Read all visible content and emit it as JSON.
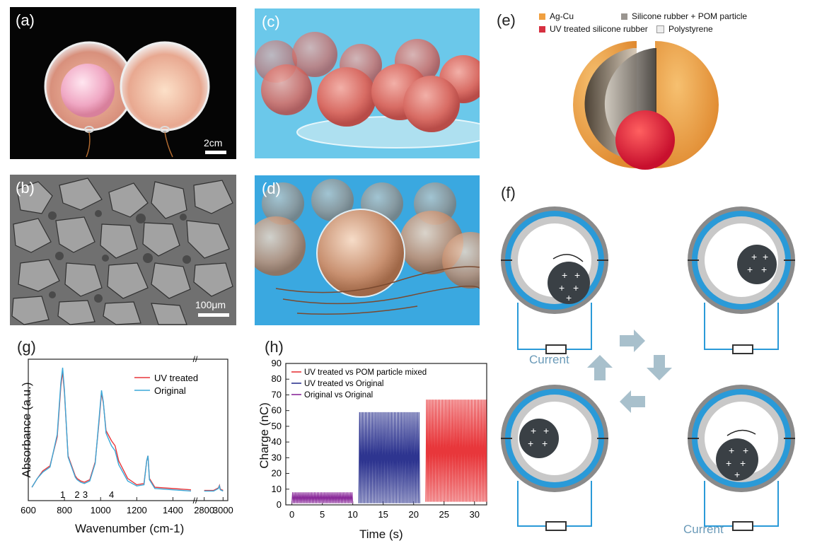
{
  "panels": {
    "a": {
      "label": "(a)",
      "scale_bar": "2cm"
    },
    "b": {
      "label": "(b)",
      "scale_bar": "100μm"
    },
    "c": {
      "label": "(c)"
    },
    "d": {
      "label": "(d)"
    },
    "e": {
      "label": "(e)",
      "legend": [
        {
          "text": "Ag-Cu",
          "color": "#f0a040"
        },
        {
          "text": "Silicone rubber + POM particle",
          "color": "#9a9590"
        },
        {
          "text": "UV treated silicone rubber",
          "color": "#d63040"
        },
        {
          "text": "Polystyrene",
          "color": "#e8e8e8"
        }
      ]
    },
    "f": {
      "label": "(f)",
      "current_left": "Current",
      "current_right": "Current"
    },
    "g": {
      "label": "(g)"
    },
    "h": {
      "label": "(h)"
    }
  },
  "chart_data": [
    {
      "type": "line",
      "panel": "g",
      "xlabel": "Wavenumber (cm-1)",
      "ylabel": "Absorbance (a.u.)",
      "x_ticks_left": [
        600,
        800,
        1000,
        1200,
        1400,
        2800,
        3000
      ],
      "x_break": "//",
      "peak_labels": [
        "1",
        "2",
        "3",
        "4"
      ],
      "legend_position": "top-right",
      "series": [
        {
          "name": "UV treated",
          "color": "#e8373b",
          "x": [
            620,
            650,
            680,
            720,
            760,
            780,
            790,
            800,
            820,
            860,
            870,
            890,
            910,
            940,
            970,
            990,
            1005,
            1015,
            1030,
            1060,
            1080,
            1100,
            1150,
            1200,
            1240,
            1255,
            1262,
            1270,
            1300,
            1400,
            1500
          ],
          "y": [
            0.05,
            0.12,
            0.18,
            0.22,
            0.45,
            0.85,
            0.97,
            0.8,
            0.3,
            0.14,
            0.12,
            0.1,
            0.09,
            0.11,
            0.25,
            0.55,
            0.8,
            0.72,
            0.5,
            0.42,
            0.38,
            0.26,
            0.12,
            0.07,
            0.08,
            0.26,
            0.3,
            0.12,
            0.05,
            0.04,
            0.03
          ]
        },
        {
          "name": "Original",
          "color": "#3aa8d8",
          "x": [
            620,
            650,
            680,
            720,
            760,
            780,
            790,
            800,
            820,
            860,
            870,
            890,
            910,
            940,
            970,
            990,
            1005,
            1015,
            1030,
            1060,
            1080,
            1100,
            1150,
            1200,
            1240,
            1255,
            1262,
            1270,
            1300,
            1400,
            1500
          ],
          "y": [
            0.05,
            0.12,
            0.17,
            0.21,
            0.47,
            0.88,
            1.0,
            0.82,
            0.29,
            0.13,
            0.11,
            0.09,
            0.08,
            0.1,
            0.24,
            0.57,
            0.82,
            0.73,
            0.48,
            0.38,
            0.34,
            0.23,
            0.1,
            0.06,
            0.07,
            0.26,
            0.3,
            0.11,
            0.04,
            0.03,
            0.02
          ]
        }
      ],
      "right_segment": {
        "x": [
          2800,
          2900,
          2950,
          2962,
          2970,
          3000
        ],
        "y": [
          0.02,
          0.02,
          0.04,
          0.06,
          0.03,
          0.02
        ]
      }
    },
    {
      "type": "line",
      "panel": "h",
      "xlabel": "Time (s)",
      "ylabel": "Charge (nC)",
      "xlim": [
        -1,
        32
      ],
      "ylim": [
        0,
        90
      ],
      "x_ticks": [
        0,
        5,
        10,
        15,
        20,
        25,
        30
      ],
      "y_ticks": [
        0,
        10,
        20,
        30,
        40,
        50,
        60,
        70,
        80,
        90
      ],
      "legend_position": "top-left",
      "series": [
        {
          "name": "UV treated vs POM particle mixed",
          "color": "#e8373b",
          "t_start": 22,
          "t_end": 32,
          "low": 2,
          "high": 67,
          "cycles": 42
        },
        {
          "name": "UV treated vs Original",
          "color": "#2e3590",
          "t_start": 11,
          "t_end": 21,
          "low": 1,
          "high": 59,
          "cycles": 42
        },
        {
          "name": "Original vs Original",
          "color": "#8a2a9a",
          "t_start": 0,
          "t_end": 10,
          "low": 1,
          "high": 8,
          "cycles": 42
        }
      ]
    }
  ]
}
